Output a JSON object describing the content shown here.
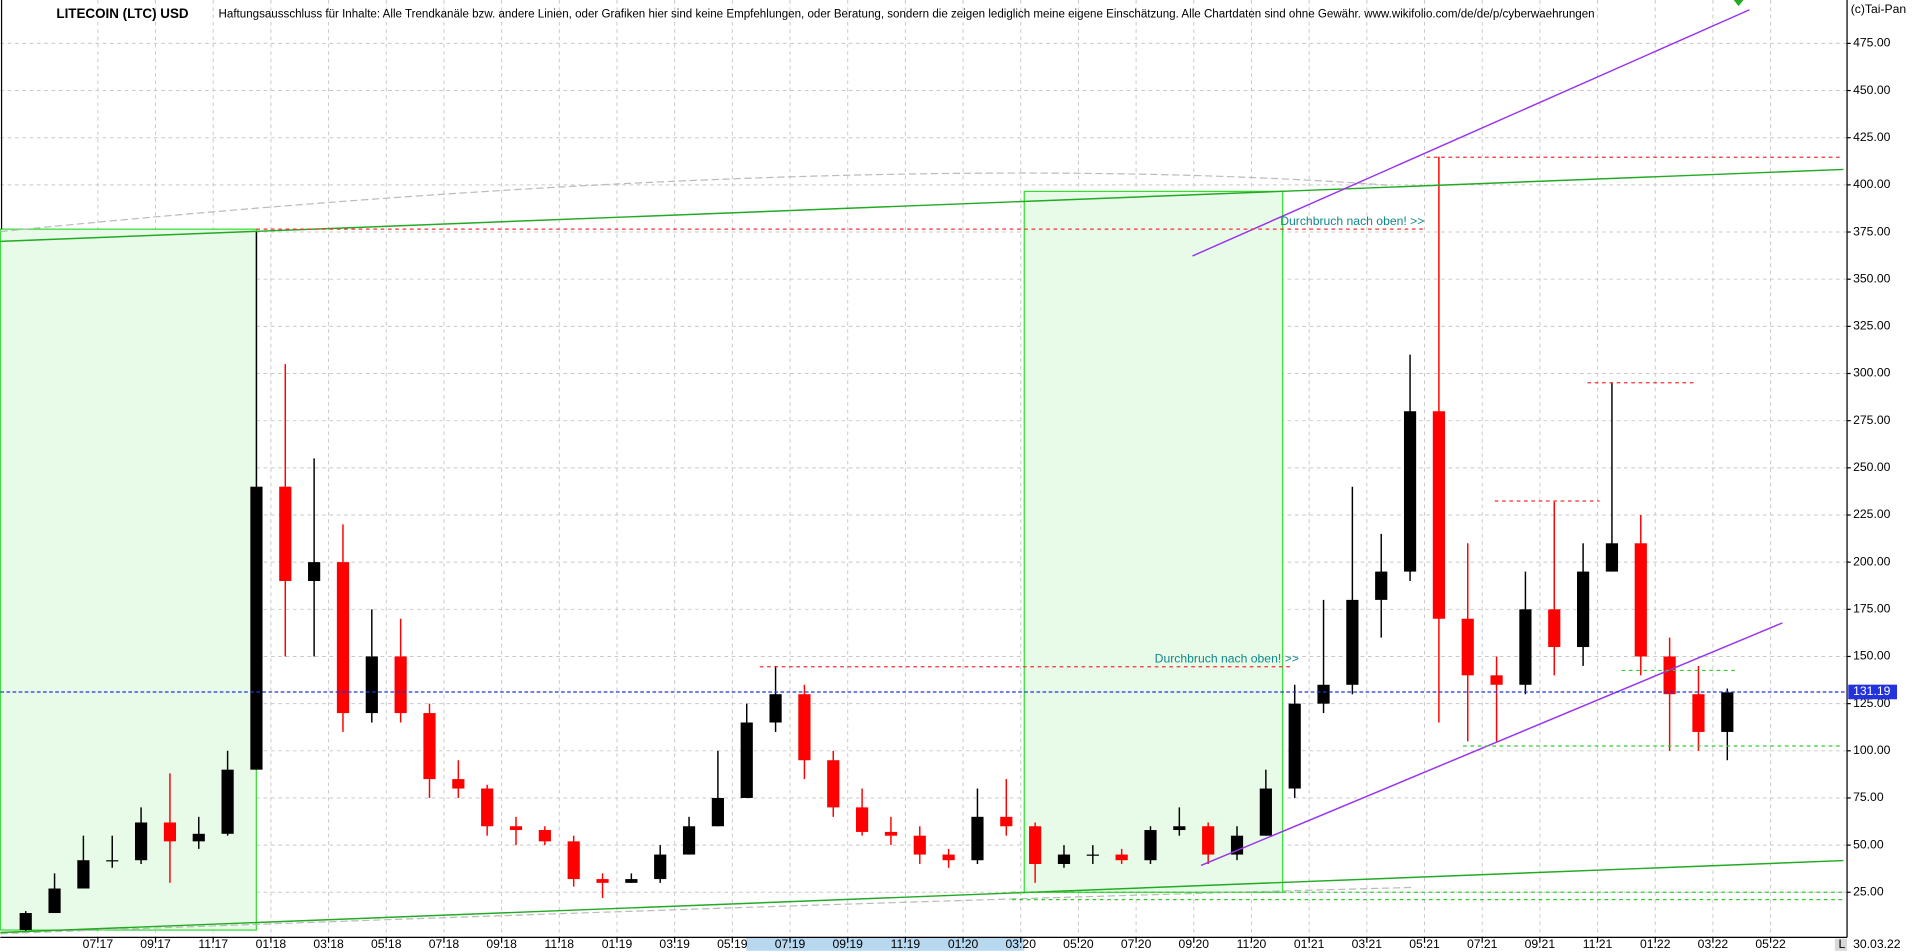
{
  "chart_data": {
    "type": "candlestick",
    "title": "LITECOIN (LTC) USD",
    "disclaimer": "Haftungsausschluss für Inhalte: Alle Trendkanäle bzw. andere Linien, oder Grafiken hier sind keine Empfehlungen, oder Beratung, sondern die zeigen lediglich meine eigene Einschätzung. Alle Chartdaten sind ohne Gewähr.  www.wikifolio.com/de/de/p/cyberwaehrungen",
    "copyright": "(c)Tai-Pan",
    "annotations": [
      "Durchbruch nach oben! >>",
      "Durchbruch nach oben! >>"
    ],
    "axis_marker": "L",
    "last_date": "30.03.22",
    "last_price": 131.19,
    "up_color": "#000000",
    "down_color": "#ff0000",
    "grid": true,
    "categories": [
      null,
      null,
      null,
      "07:17",
      null,
      "09:17",
      null,
      "11:17",
      null,
      "01:18",
      null,
      "03:18",
      null,
      "05:18",
      null,
      "07:18",
      null,
      "09:18",
      null,
      "11:18",
      null,
      "01:19",
      null,
      "03:19",
      null,
      "05:19",
      null,
      "07:19",
      null,
      "09:19",
      null,
      "11:19",
      null,
      "01:20",
      null,
      "03:20",
      null,
      "05:20",
      null,
      "07:20",
      null,
      "09:20",
      null,
      "11:20",
      null,
      "01:21",
      null,
      "03:21",
      null,
      "05:21",
      null,
      "07:21",
      null,
      "09:21",
      null,
      "11:21",
      null,
      "01:22",
      null,
      "03:22",
      null,
      "05:22"
    ],
    "open": [
      5,
      14,
      27,
      42,
      42,
      62,
      52,
      56,
      90,
      240,
      190,
      200,
      120,
      150,
      120,
      85,
      80,
      60,
      58,
      52,
      32,
      30,
      32,
      45,
      60,
      75,
      115,
      130,
      95,
      70,
      57,
      55,
      45,
      42,
      65,
      60,
      40,
      45,
      45,
      42,
      58,
      60,
      45,
      55,
      80,
      125,
      135,
      180,
      195,
      280,
      170,
      140,
      135,
      175,
      155,
      195,
      210,
      150,
      130,
      110,
      null,
      null
    ],
    "high": [
      15,
      35,
      55,
      55,
      70,
      88,
      65,
      100,
      375,
      305,
      255,
      220,
      175,
      170,
      125,
      95,
      82,
      65,
      60,
      55,
      35,
      35,
      50,
      65,
      100,
      125,
      145,
      135,
      100,
      80,
      65,
      60,
      48,
      80,
      85,
      62,
      50,
      50,
      48,
      60,
      70,
      62,
      60,
      90,
      135,
      180,
      240,
      215,
      310,
      415,
      210,
      150,
      195,
      232,
      210,
      295,
      225,
      160,
      145,
      133,
      null,
      null
    ],
    "low": [
      4,
      14,
      27,
      38,
      40,
      30,
      48,
      55,
      90,
      150,
      150,
      110,
      115,
      115,
      75,
      75,
      55,
      50,
      50,
      28,
      22,
      30,
      30,
      45,
      60,
      75,
      110,
      85,
      65,
      55,
      50,
      40,
      38,
      40,
      55,
      30,
      38,
      40,
      40,
      40,
      55,
      40,
      42,
      55,
      75,
      120,
      130,
      160,
      190,
      115,
      105,
      105,
      130,
      140,
      145,
      195,
      140,
      100,
      100,
      95,
      null,
      null
    ],
    "close": [
      14,
      27,
      42,
      42,
      62,
      52,
      56,
      90,
      240,
      190,
      200,
      120,
      150,
      120,
      85,
      80,
      60,
      58,
      52,
      32,
      30,
      32,
      45,
      60,
      75,
      115,
      130,
      95,
      70,
      57,
      55,
      45,
      42,
      65,
      60,
      40,
      45,
      45,
      42,
      58,
      60,
      45,
      55,
      80,
      125,
      135,
      180,
      195,
      280,
      170,
      140,
      135,
      175,
      155,
      195,
      210,
      150,
      130,
      110,
      131,
      null,
      null
    ],
    "ylim": [
      0,
      498
    ],
    "yticks": [
      {
        "value": 25,
        "label": "25.00"
      },
      {
        "value": 50,
        "label": "50.00"
      },
      {
        "value": 75,
        "label": "75.00"
      },
      {
        "value": 100,
        "label": "100.00"
      },
      {
        "value": 125,
        "label": "125.00"
      },
      {
        "value": 150,
        "label": "150.00"
      },
      {
        "value": 175,
        "label": "175.00"
      },
      {
        "value": 200,
        "label": "200.00"
      },
      {
        "value": 225,
        "label": "225.00"
      },
      {
        "value": 250,
        "label": "250.00"
      },
      {
        "value": 275,
        "label": "275.00"
      },
      {
        "value": 300,
        "label": "300.00"
      },
      {
        "value": 325,
        "label": "325.00"
      },
      {
        "value": 350,
        "label": "350.00"
      },
      {
        "value": 375,
        "label": "375.00"
      },
      {
        "value": 400,
        "label": "400.00"
      },
      {
        "value": 425,
        "label": "425.00"
      },
      {
        "value": 450,
        "label": "450.00"
      },
      {
        "value": 475,
        "label": "475.00"
      }
    ]
  }
}
